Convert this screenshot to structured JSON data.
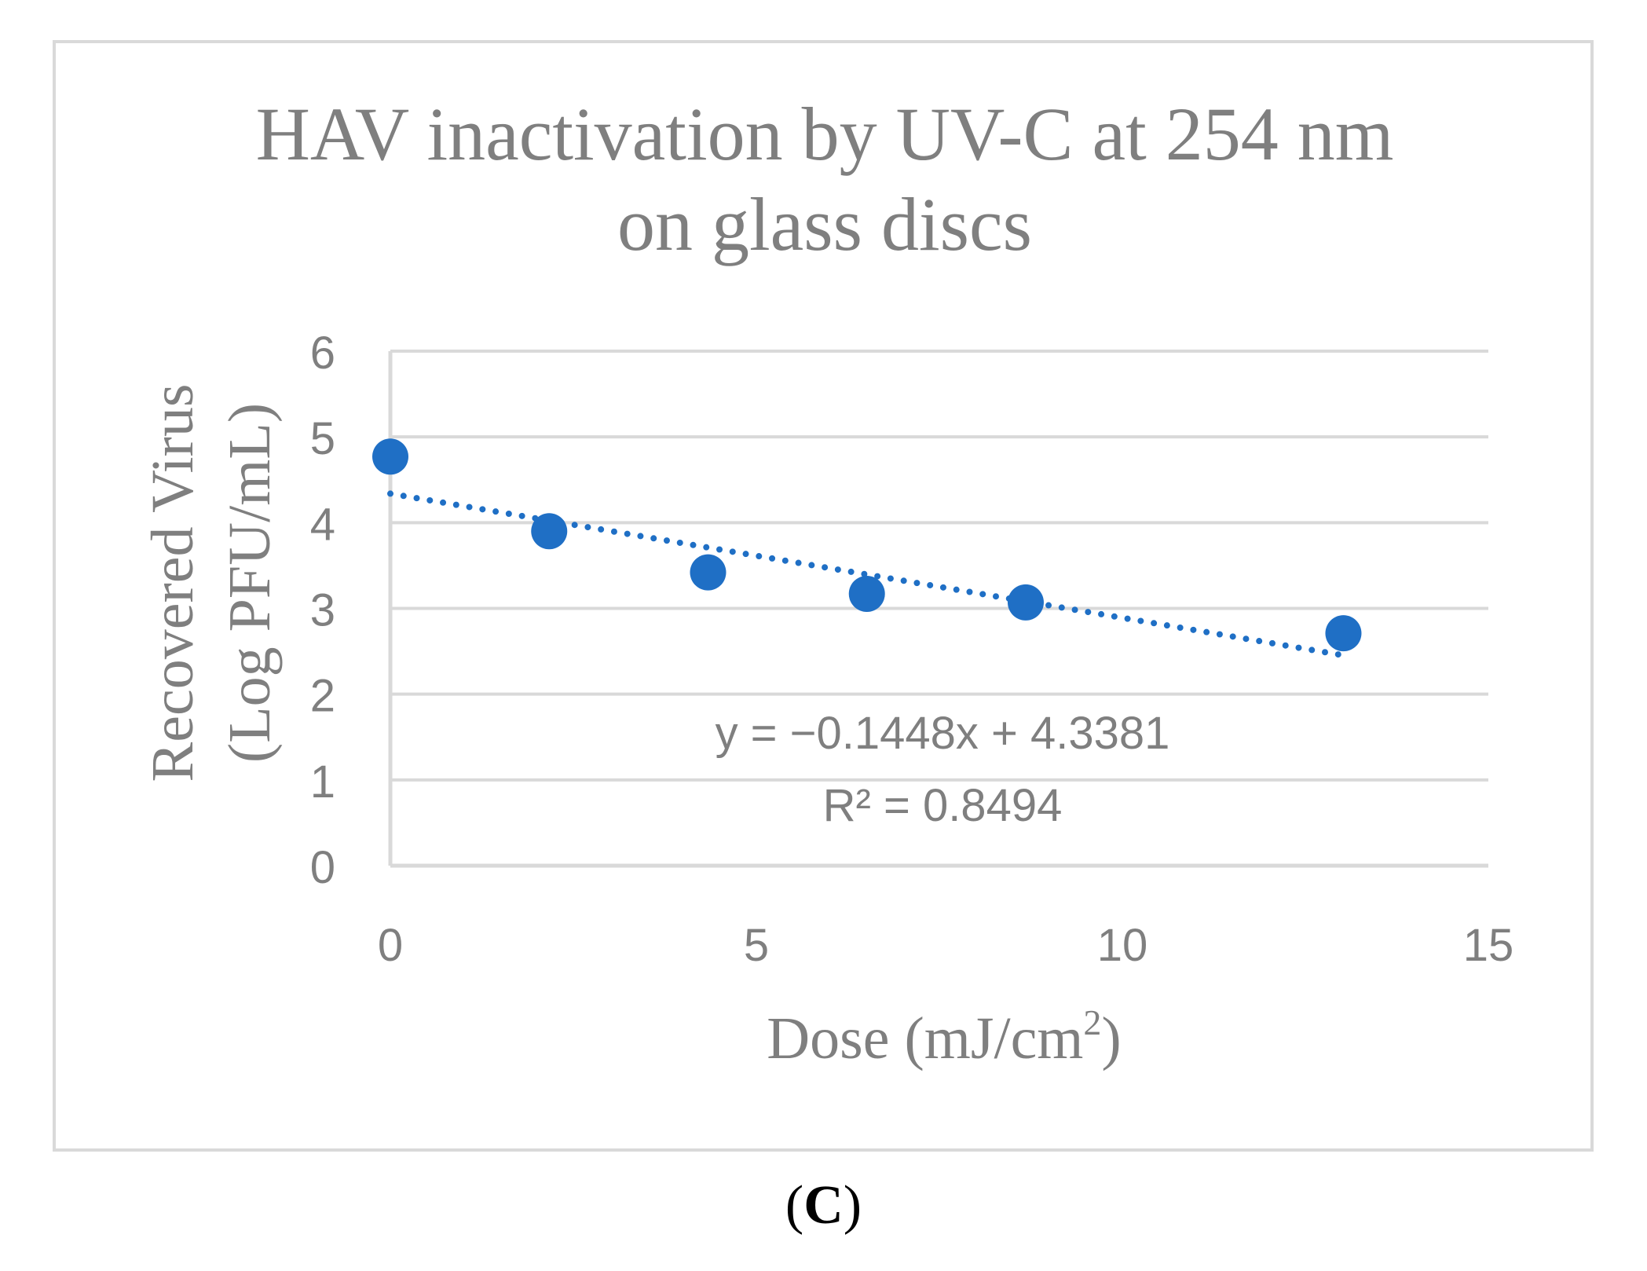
{
  "chart_data": {
    "type": "scatter",
    "title_line1": "HAV inactivation by UV-C at 254 nm",
    "title_line2": "on glass discs",
    "ylabel_line1": "Recovered Virus",
    "ylabel_line2": "(Log PFU/mL)",
    "xlabel_main": "Dose (mJ/cm",
    "xlabel_sup": "2",
    "xlabel_close": ")",
    "xlim": [
      0,
      15
    ],
    "ylim": [
      0,
      6
    ],
    "x_ticks": [
      0,
      5,
      10,
      15
    ],
    "y_ticks": [
      0,
      1,
      2,
      3,
      4,
      5,
      6
    ],
    "grid": true,
    "series": [
      {
        "name": "Recovered Virus",
        "x": [
          0,
          2.17,
          4.34,
          6.51,
          8.68,
          13.02
        ],
        "y": [
          4.77,
          3.9,
          3.42,
          3.17,
          3.07,
          2.71
        ]
      }
    ],
    "trendline": {
      "type": "linear",
      "slope": -0.1448,
      "intercept": 4.3381,
      "x_range": [
        0,
        13.02
      ],
      "equation": "y = −0.1448x + 4.3381",
      "r2_label": "R² = 0.8494"
    },
    "colors": {
      "marker": "#1f6fc5",
      "grid": "#d9d9d9",
      "text": "#7f7f7f"
    }
  },
  "panel_label": {
    "open": "(",
    "letter": "C",
    "close": ")"
  }
}
